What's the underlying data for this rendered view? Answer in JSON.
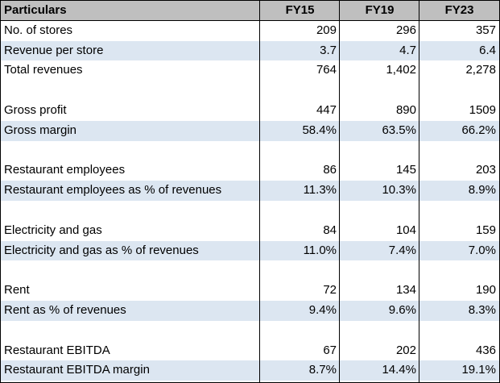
{
  "table": {
    "headers": [
      "Particulars",
      "FY15",
      "FY19",
      "FY23"
    ],
    "rows": [
      [
        "No. of stores",
        "209",
        "296",
        "357"
      ],
      [
        "Revenue per store",
        "3.7",
        "4.7",
        "6.4"
      ],
      [
        "Total revenues",
        "764",
        "1,402",
        "2,278"
      ],
      [
        "",
        "",
        "",
        ""
      ],
      [
        "Gross profit",
        "447",
        "890",
        "1509"
      ],
      [
        "Gross margin",
        "58.4%",
        "63.5%",
        "66.2%"
      ],
      [
        "",
        "",
        "",
        ""
      ],
      [
        "Restaurant employees",
        "86",
        "145",
        "203"
      ],
      [
        "Restaurant employees as % of revenues",
        "11.3%",
        "10.3%",
        "8.9%"
      ],
      [
        "",
        "",
        "",
        ""
      ],
      [
        "Electricity and gas",
        "84",
        "104",
        "159"
      ],
      [
        "Electricity and gas as % of revenues",
        "11.0%",
        "7.4%",
        "7.0%"
      ],
      [
        "",
        "",
        "",
        ""
      ],
      [
        "Rent",
        "72",
        "134",
        "190"
      ],
      [
        "Rent as % of revenues",
        "9.4%",
        "9.6%",
        "8.3%"
      ],
      [
        "",
        "",
        "",
        ""
      ],
      [
        "Restaurant EBITDA",
        "67",
        "202",
        "436"
      ],
      [
        "Restaurant EBITDA margin",
        "8.7%",
        "14.4%",
        "19.1%"
      ]
    ]
  },
  "colors": {
    "header_bg": "#bfbfbf",
    "shaded_row_bg": "#dce6f1",
    "border": "#000000"
  }
}
